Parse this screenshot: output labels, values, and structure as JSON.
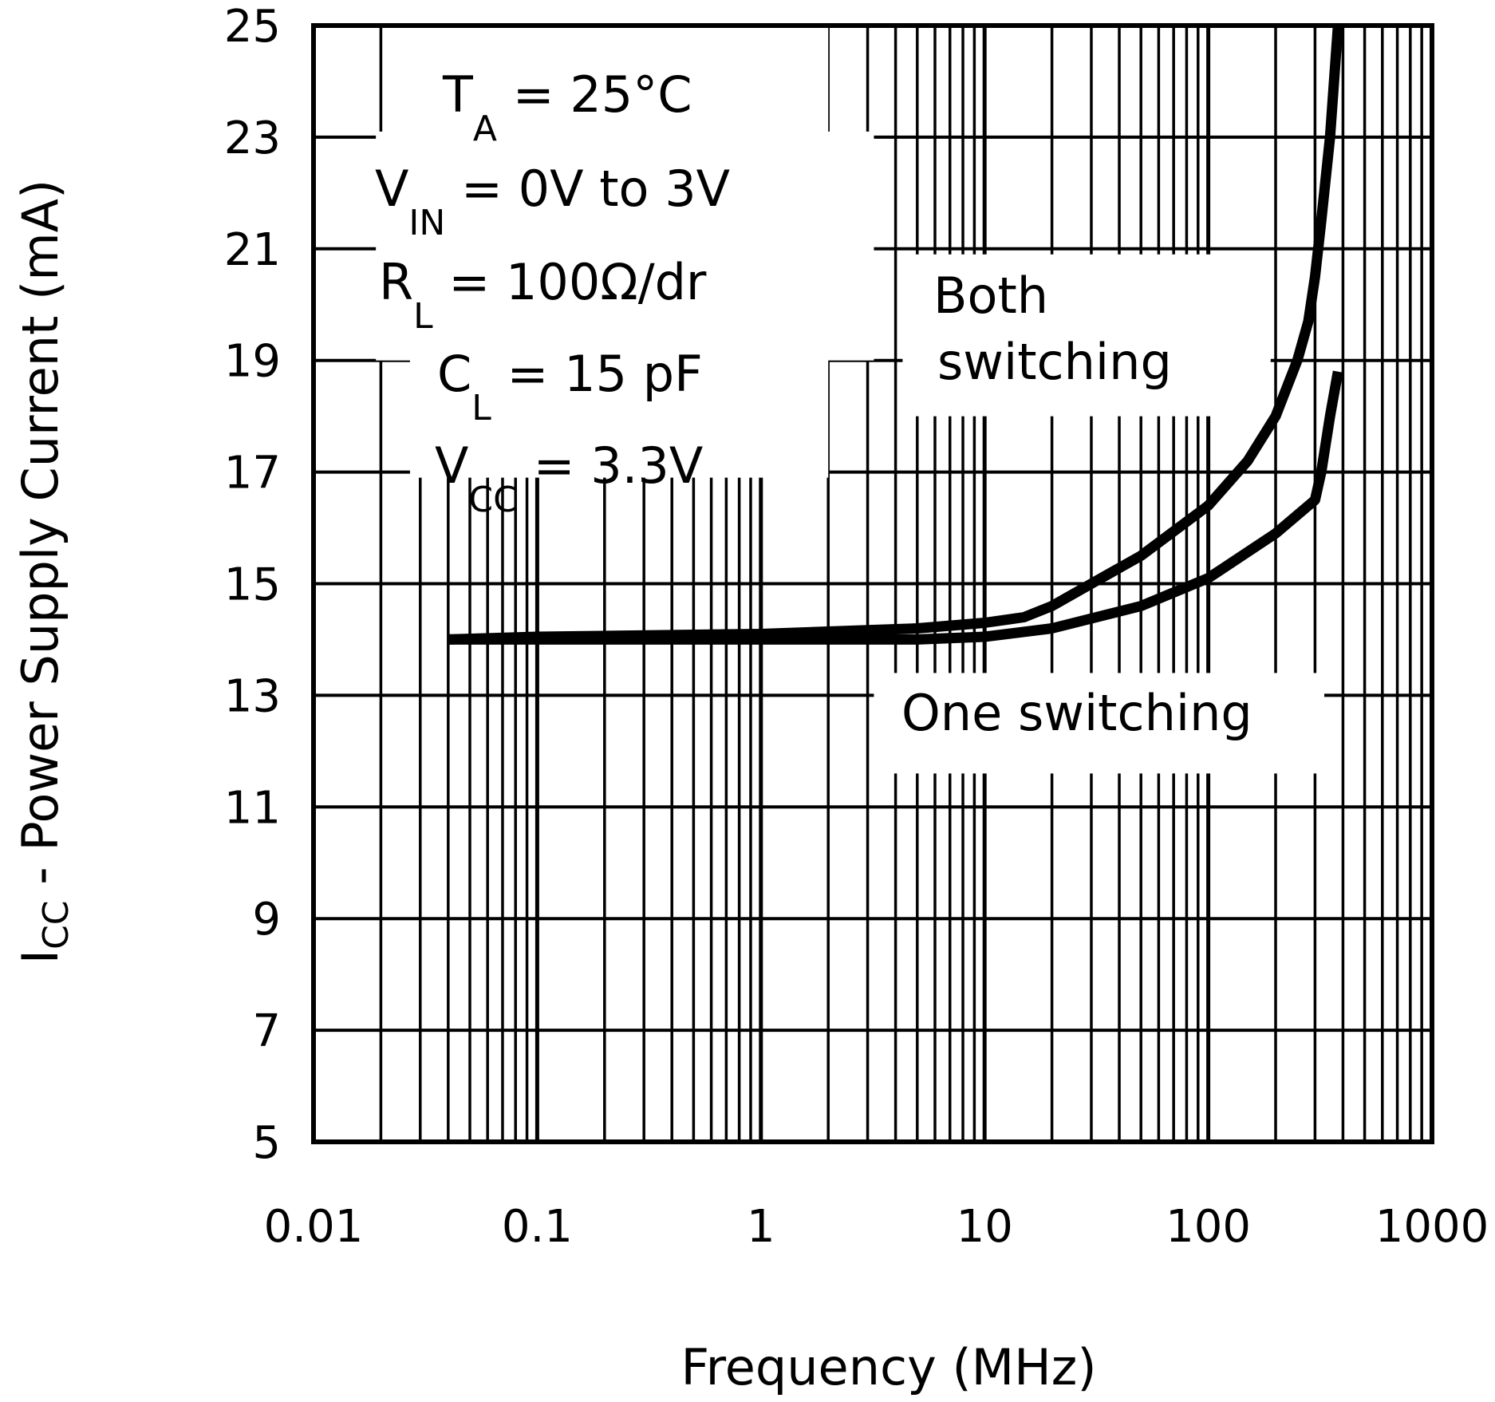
{
  "chart_data": {
    "type": "line",
    "xscale": "log",
    "xlim": [
      0.01,
      1000
    ],
    "ylim": [
      5,
      25
    ],
    "xlabel": "Frequency (MHz)",
    "ylabel": {
      "symbol": "I",
      "subscript": "CC",
      "text": " - Power Supply Current (mA)"
    },
    "x_ticks": [
      "0.01",
      "0.1",
      "1",
      "10",
      "100",
      "1000"
    ],
    "y_ticks": [
      "5",
      "7",
      "9",
      "11",
      "13",
      "15",
      "17",
      "19",
      "21",
      "23",
      "25"
    ],
    "grid": true,
    "conditions": [
      {
        "symbol": "T",
        "subscript": "A",
        "text": " = 25°C"
      },
      {
        "symbol": "V",
        "subscript": "IN",
        "text": " = 0V to 3V"
      },
      {
        "symbol": "R",
        "subscript": "L",
        "text": " = 100Ω/dr"
      },
      {
        "symbol": "C",
        "subscript": "L",
        "text": " = 15 pF"
      },
      {
        "symbol": "V",
        "subscript": "CC",
        "text": " = 3.3V"
      }
    ],
    "series": [
      {
        "name": "Both switching",
        "label_lines": [
          "Both",
          "switching"
        ],
        "x": [
          0.04,
          0.1,
          1,
          5,
          10,
          15,
          20,
          30,
          50,
          100,
          150,
          200,
          250,
          280,
          300,
          320,
          350,
          380
        ],
        "y": [
          14.0,
          14.05,
          14.1,
          14.2,
          14.3,
          14.4,
          14.6,
          15.0,
          15.5,
          16.4,
          17.2,
          18.0,
          19.0,
          19.7,
          20.5,
          21.5,
          23.0,
          25.0
        ]
      },
      {
        "name": "One switching",
        "label_lines": [
          "One switching"
        ],
        "x": [
          0.04,
          0.1,
          1,
          5,
          10,
          20,
          50,
          100,
          200,
          300,
          320,
          350,
          380
        ],
        "y": [
          14.0,
          14.0,
          14.0,
          14.0,
          14.05,
          14.2,
          14.6,
          15.1,
          15.9,
          16.5,
          17.0,
          18.0,
          18.8
        ]
      }
    ]
  }
}
